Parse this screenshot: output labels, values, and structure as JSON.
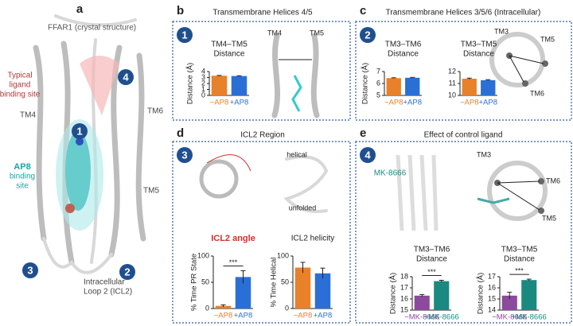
{
  "panels": [
    {
      "letter": "a",
      "labels": [
        {
          "lines": [
            "FFAR1 (crystal structure)"
          ],
          "color": "#555555"
        },
        {
          "lines": [
            "Typical",
            "ligand",
            "binding site"
          ],
          "color": "#b03a3a"
        },
        {
          "lines": [
            "TM4"
          ],
          "color": "#444444"
        },
        {
          "lines": [
            "TM6"
          ],
          "color": "#444444"
        },
        {
          "lines": [
            "AP8"
          ],
          "color": "#1aa6a6",
          "bold": true
        },
        {
          "lines": [
            "binding",
            "site"
          ],
          "color": "#1aa6a6"
        },
        {
          "lines": [
            "TM5"
          ],
          "color": "#444444"
        },
        {
          "lines": [
            "Intracellular",
            "Loop 2 (ICL2)"
          ],
          "color": "#444444"
        }
      ],
      "badges": [
        "1",
        "4",
        "3",
        "2"
      ]
    },
    {
      "letter": "b",
      "title": "Transmembrane Helices 4/5",
      "badge": "1",
      "labels": [
        "TM4",
        "TM5"
      ]
    },
    {
      "letter": "c",
      "title": "Transmembrane Helices 3/5/6 (Intracellular)",
      "badge": "2",
      "labels": [
        "TM3",
        "TM5",
        "TM6"
      ]
    },
    {
      "letter": "d",
      "title": "ICL2 Region",
      "badge": "3",
      "labels": [
        "helical",
        "unfolded"
      ]
    },
    {
      "letter": "e",
      "title": "Effect of control ligand",
      "badge": "4",
      "labels": [
        "MK-8666",
        "TM3",
        "TM6",
        "TM5"
      ]
    }
  ],
  "chart_data": [
    {
      "type": "bar",
      "title": [
        "TM4–TM5",
        "Distance"
      ],
      "ylabel": "Distance (Å)",
      "categories": [
        "−AP8",
        "+AP8"
      ],
      "values": [
        3.3,
        3.25
      ],
      "errors": [
        0.05,
        0.05
      ],
      "colors": [
        "#e8812a",
        "#2a6fd6"
      ],
      "ylim": [
        0,
        4
      ],
      "yticks": [
        0,
        1,
        2,
        3,
        4
      ]
    },
    {
      "type": "bar",
      "title": [
        "TM3–TM6",
        "Distance"
      ],
      "ylabel": "Distance (Å)",
      "categories": [
        "−AP8",
        "+AP8"
      ],
      "values": [
        6.45,
        6.48
      ],
      "errors": [
        0.03,
        0.03
      ],
      "colors": [
        "#e8812a",
        "#2a6fd6"
      ],
      "ylim": [
        5,
        7
      ],
      "yticks": [
        5,
        6,
        7
      ]
    },
    {
      "type": "bar",
      "title": [
        "TM3–TM5",
        "Distance"
      ],
      "categories": [
        "−AP8",
        "+AP8"
      ],
      "values": [
        11.4,
        11.28
      ],
      "errors": [
        0.05,
        0.04
      ],
      "colors": [
        "#e8812a",
        "#2a6fd6"
      ],
      "ylim": [
        10,
        12
      ],
      "yticks": [
        10,
        11,
        12
      ]
    },
    {
      "type": "bar",
      "title": [
        "ICL2 angle"
      ],
      "title_color": "#d0302a",
      "ylabel": "% Time PR State",
      "categories": [
        "−AP8",
        "+AP8"
      ],
      "values": [
        5,
        60
      ],
      "errors": [
        2,
        12
      ],
      "colors": [
        "#e8812a",
        "#2a6fd6"
      ],
      "ylim": [
        0,
        100
      ],
      "yticks": [
        0,
        50,
        100
      ],
      "annotation": "***"
    },
    {
      "type": "bar",
      "title": [
        "ICL2 helicity"
      ],
      "ylabel": "% Time  Helical",
      "categories": [
        "−AP8",
        "+AP8"
      ],
      "values": [
        78,
        67
      ],
      "errors": [
        10,
        10
      ],
      "colors": [
        "#e8812a",
        "#2a6fd6"
      ],
      "ylim": [
        0,
        100
      ],
      "yticks": [
        0,
        50,
        100
      ]
    },
    {
      "type": "bar",
      "title": [
        "TM3–TM6",
        "Distance"
      ],
      "ylabel": "Distance (Å)",
      "categories": [
        "−MK-8666",
        "+MK-8666"
      ],
      "values": [
        16.3,
        17.6
      ],
      "errors": [
        0.1,
        0.08
      ],
      "colors": [
        "#8b4a9c",
        "#1a8a80"
      ],
      "ylim": [
        15,
        18
      ],
      "yticks": [
        15,
        16,
        17,
        18
      ],
      "annotation": "***"
    },
    {
      "type": "bar",
      "title": [
        "TM3–TM5",
        "Distance"
      ],
      "ylabel": "Distance (Å)",
      "categories": [
        "−MK-8666",
        "+MK-8666"
      ],
      "values": [
        15.3,
        16.7
      ],
      "errors": [
        0.3,
        0.08
      ],
      "colors": [
        "#8b4a9c",
        "#1a8a80"
      ],
      "ylim": [
        14,
        17
      ],
      "yticks": [
        14,
        15,
        16,
        17
      ],
      "annotation": "***"
    }
  ]
}
